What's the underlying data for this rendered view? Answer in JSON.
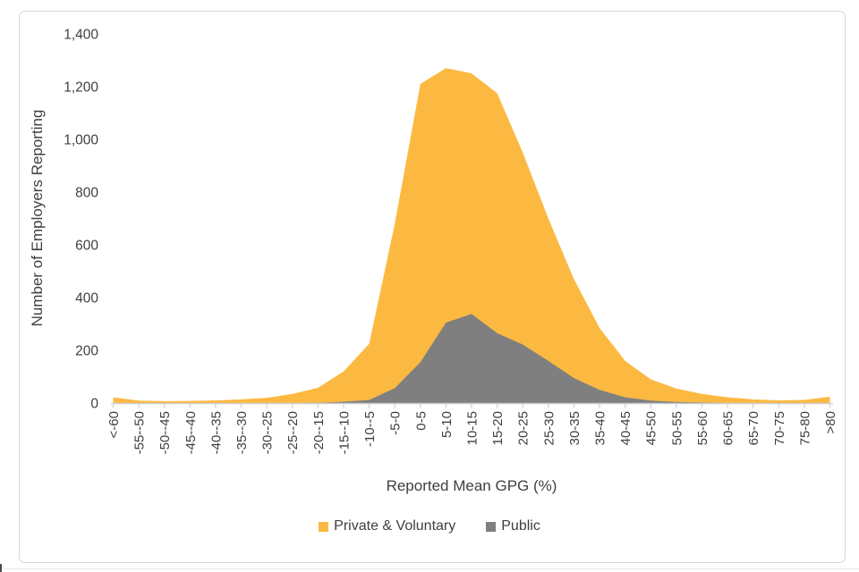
{
  "chart": {
    "background": "#FFFFFF",
    "border_color": "#D9D9D9"
  },
  "chart_data": {
    "type": "area",
    "title": "",
    "xlabel": "Reported Mean GPG (%)",
    "ylabel": "Number of Employers Reporting",
    "ylim": [
      0,
      1400
    ],
    "ytick_values": [
      0,
      200,
      400,
      600,
      800,
      1000,
      1200,
      1400
    ],
    "ytick_labels": [
      "0",
      "200",
      "400",
      "600",
      "800",
      "1,000",
      "1,200",
      "1,400"
    ],
    "grid": false,
    "legend_position": "bottom",
    "axis_color": "#CFCFCF",
    "text_color": "#3F3F3F",
    "categories": [
      "<-60",
      "-55--50",
      "-50--45",
      "-45--40",
      "-40--35",
      "-35--30",
      "-30--25",
      "-25--20",
      "-20--15",
      "-15--10",
      "-10--5",
      "-5-0",
      "0-5",
      "5-10",
      "10-15",
      "15-20",
      "20-25",
      "25-30",
      "30-35",
      "35-40",
      "40-45",
      "45-50",
      "50-55",
      "55-60",
      "60-65",
      "65-70",
      "70-75",
      "75-80",
      ">80"
    ],
    "series": [
      {
        "name": "Private & Voluntary",
        "color": "#FCB942",
        "values": [
          22,
          9,
          7,
          8,
          10,
          14,
          20,
          35,
          58,
          120,
          225,
          680,
          1210,
          1270,
          1250,
          1175,
          950,
          700,
          470,
          285,
          160,
          90,
          55,
          35,
          22,
          14,
          10,
          12,
          24
        ]
      },
      {
        "name": "Public",
        "color": "#7F7F7F",
        "values": [
          0,
          0,
          0,
          0,
          0,
          0,
          0,
          0,
          1,
          5,
          12,
          57,
          155,
          305,
          338,
          265,
          222,
          160,
          95,
          50,
          22,
          9,
          4,
          2,
          0,
          0,
          0,
          0,
          0
        ]
      }
    ]
  }
}
